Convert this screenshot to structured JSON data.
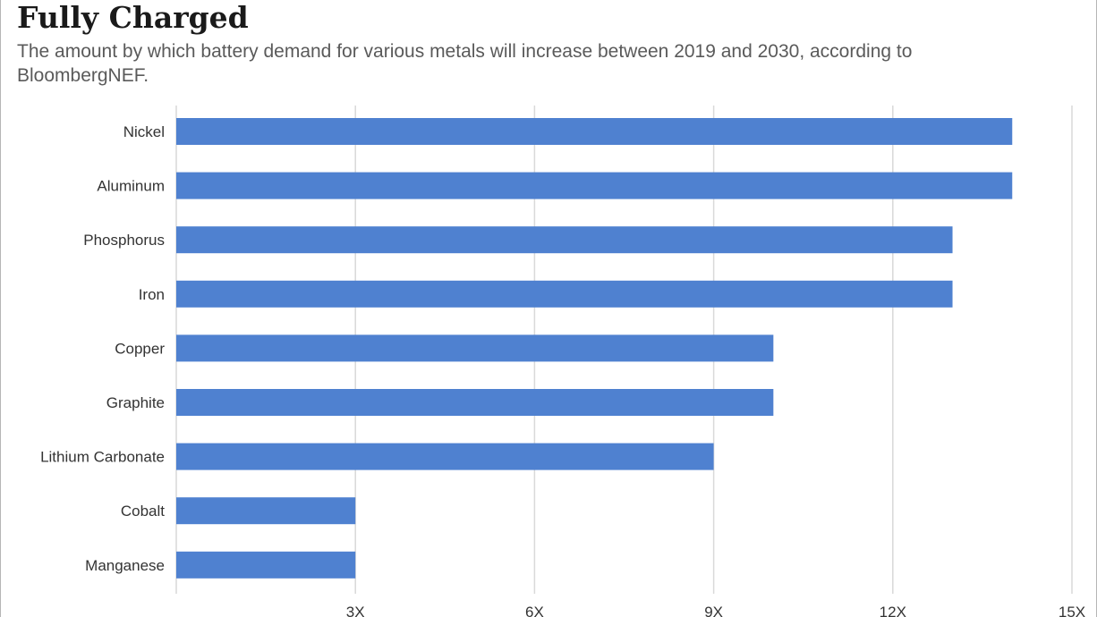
{
  "chart_data": {
    "type": "bar",
    "orientation": "horizontal",
    "title": "Fully Charged",
    "subtitle": "The amount by which battery demand for various metals will increase between 2019 and 2030, according to BloombergNEF.",
    "categories": [
      "Nickel",
      "Aluminum",
      "Phosphorus",
      "Iron",
      "Copper",
      "Graphite",
      "Lithium Carbonate",
      "Cobalt",
      "Manganese"
    ],
    "values": [
      14,
      14,
      13,
      13,
      10,
      10,
      9,
      3,
      3
    ],
    "xlim": [
      0,
      15
    ],
    "xticks": [
      {
        "value": 3,
        "label": "3X"
      },
      {
        "value": 6,
        "label": "6X"
      },
      {
        "value": 9,
        "label": "9X"
      },
      {
        "value": 12,
        "label": "12X"
      },
      {
        "value": 15,
        "label": "15X"
      }
    ],
    "bar_color": "#4f81d0",
    "grid_color": "#d9d9d9",
    "grid": true,
    "xlabel": "",
    "ylabel": ""
  }
}
